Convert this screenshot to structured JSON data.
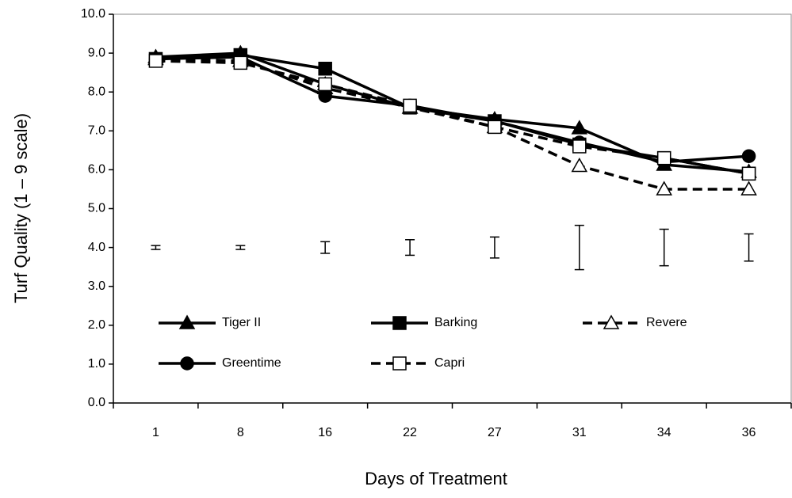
{
  "chart_data": {
    "type": "line",
    "xlabel": "Days of Treatment",
    "ylabel": "Turf Quality (1 – 9 scale)",
    "categories": [
      "1",
      "8",
      "16",
      "22",
      "27",
      "31",
      "34",
      "36"
    ],
    "ylim": [
      0,
      10
    ],
    "yticks": [
      {
        "value": 0,
        "label": "0.0"
      },
      {
        "value": 1,
        "label": "1.0"
      },
      {
        "value": 2,
        "label": "2.0"
      },
      {
        "value": 3,
        "label": "3.0"
      },
      {
        "value": 4,
        "label": "4.0"
      },
      {
        "value": 5,
        "label": "5.0"
      },
      {
        "value": 6,
        "label": "6.0"
      },
      {
        "value": 7,
        "label": "7.0"
      },
      {
        "value": 8,
        "label": "8.0"
      },
      {
        "value": 9,
        "label": "9.0"
      },
      {
        "value": 10,
        "label": "10.0"
      }
    ],
    "grid": false,
    "series": [
      {
        "name": "Tiger II",
        "color": "#000000",
        "marker": "triangle",
        "marker_fill": "#000000",
        "dashed": false,
        "values": [
          8.9,
          9.0,
          8.2,
          7.6,
          7.3,
          7.07,
          6.13,
          5.95
        ]
      },
      {
        "name": "Barking",
        "color": "#000000",
        "marker": "square",
        "marker_fill": "#000000",
        "dashed": false,
        "values": [
          8.85,
          8.95,
          8.6,
          7.6,
          7.25,
          6.65,
          6.3,
          5.9
        ]
      },
      {
        "name": "Revere",
        "color": "#000000",
        "marker": "triangle",
        "marker_fill": "#ffffff",
        "dashed": true,
        "values": [
          8.85,
          8.8,
          8.1,
          7.6,
          7.1,
          6.1,
          5.5,
          5.5
        ]
      },
      {
        "name": "Greentime",
        "color": "#000000",
        "marker": "circle",
        "marker_fill": "#000000",
        "dashed": false,
        "values": [
          8.85,
          8.9,
          7.9,
          7.65,
          7.25,
          6.7,
          6.2,
          6.35
        ]
      },
      {
        "name": "Capri",
        "color": "#000000",
        "marker": "square",
        "marker_fill": "#ffffff",
        "dashed": true,
        "values": [
          8.8,
          8.75,
          8.2,
          7.65,
          7.1,
          6.6,
          6.3,
          5.9
        ]
      }
    ],
    "error_bars": {
      "values": [
        4.0,
        4.0,
        4.0,
        4.0,
        4.0,
        4.0,
        4.0,
        4.0
      ],
      "errors": [
        0.05,
        0.05,
        0.15,
        0.2,
        0.27,
        0.57,
        0.47,
        0.35
      ]
    }
  }
}
